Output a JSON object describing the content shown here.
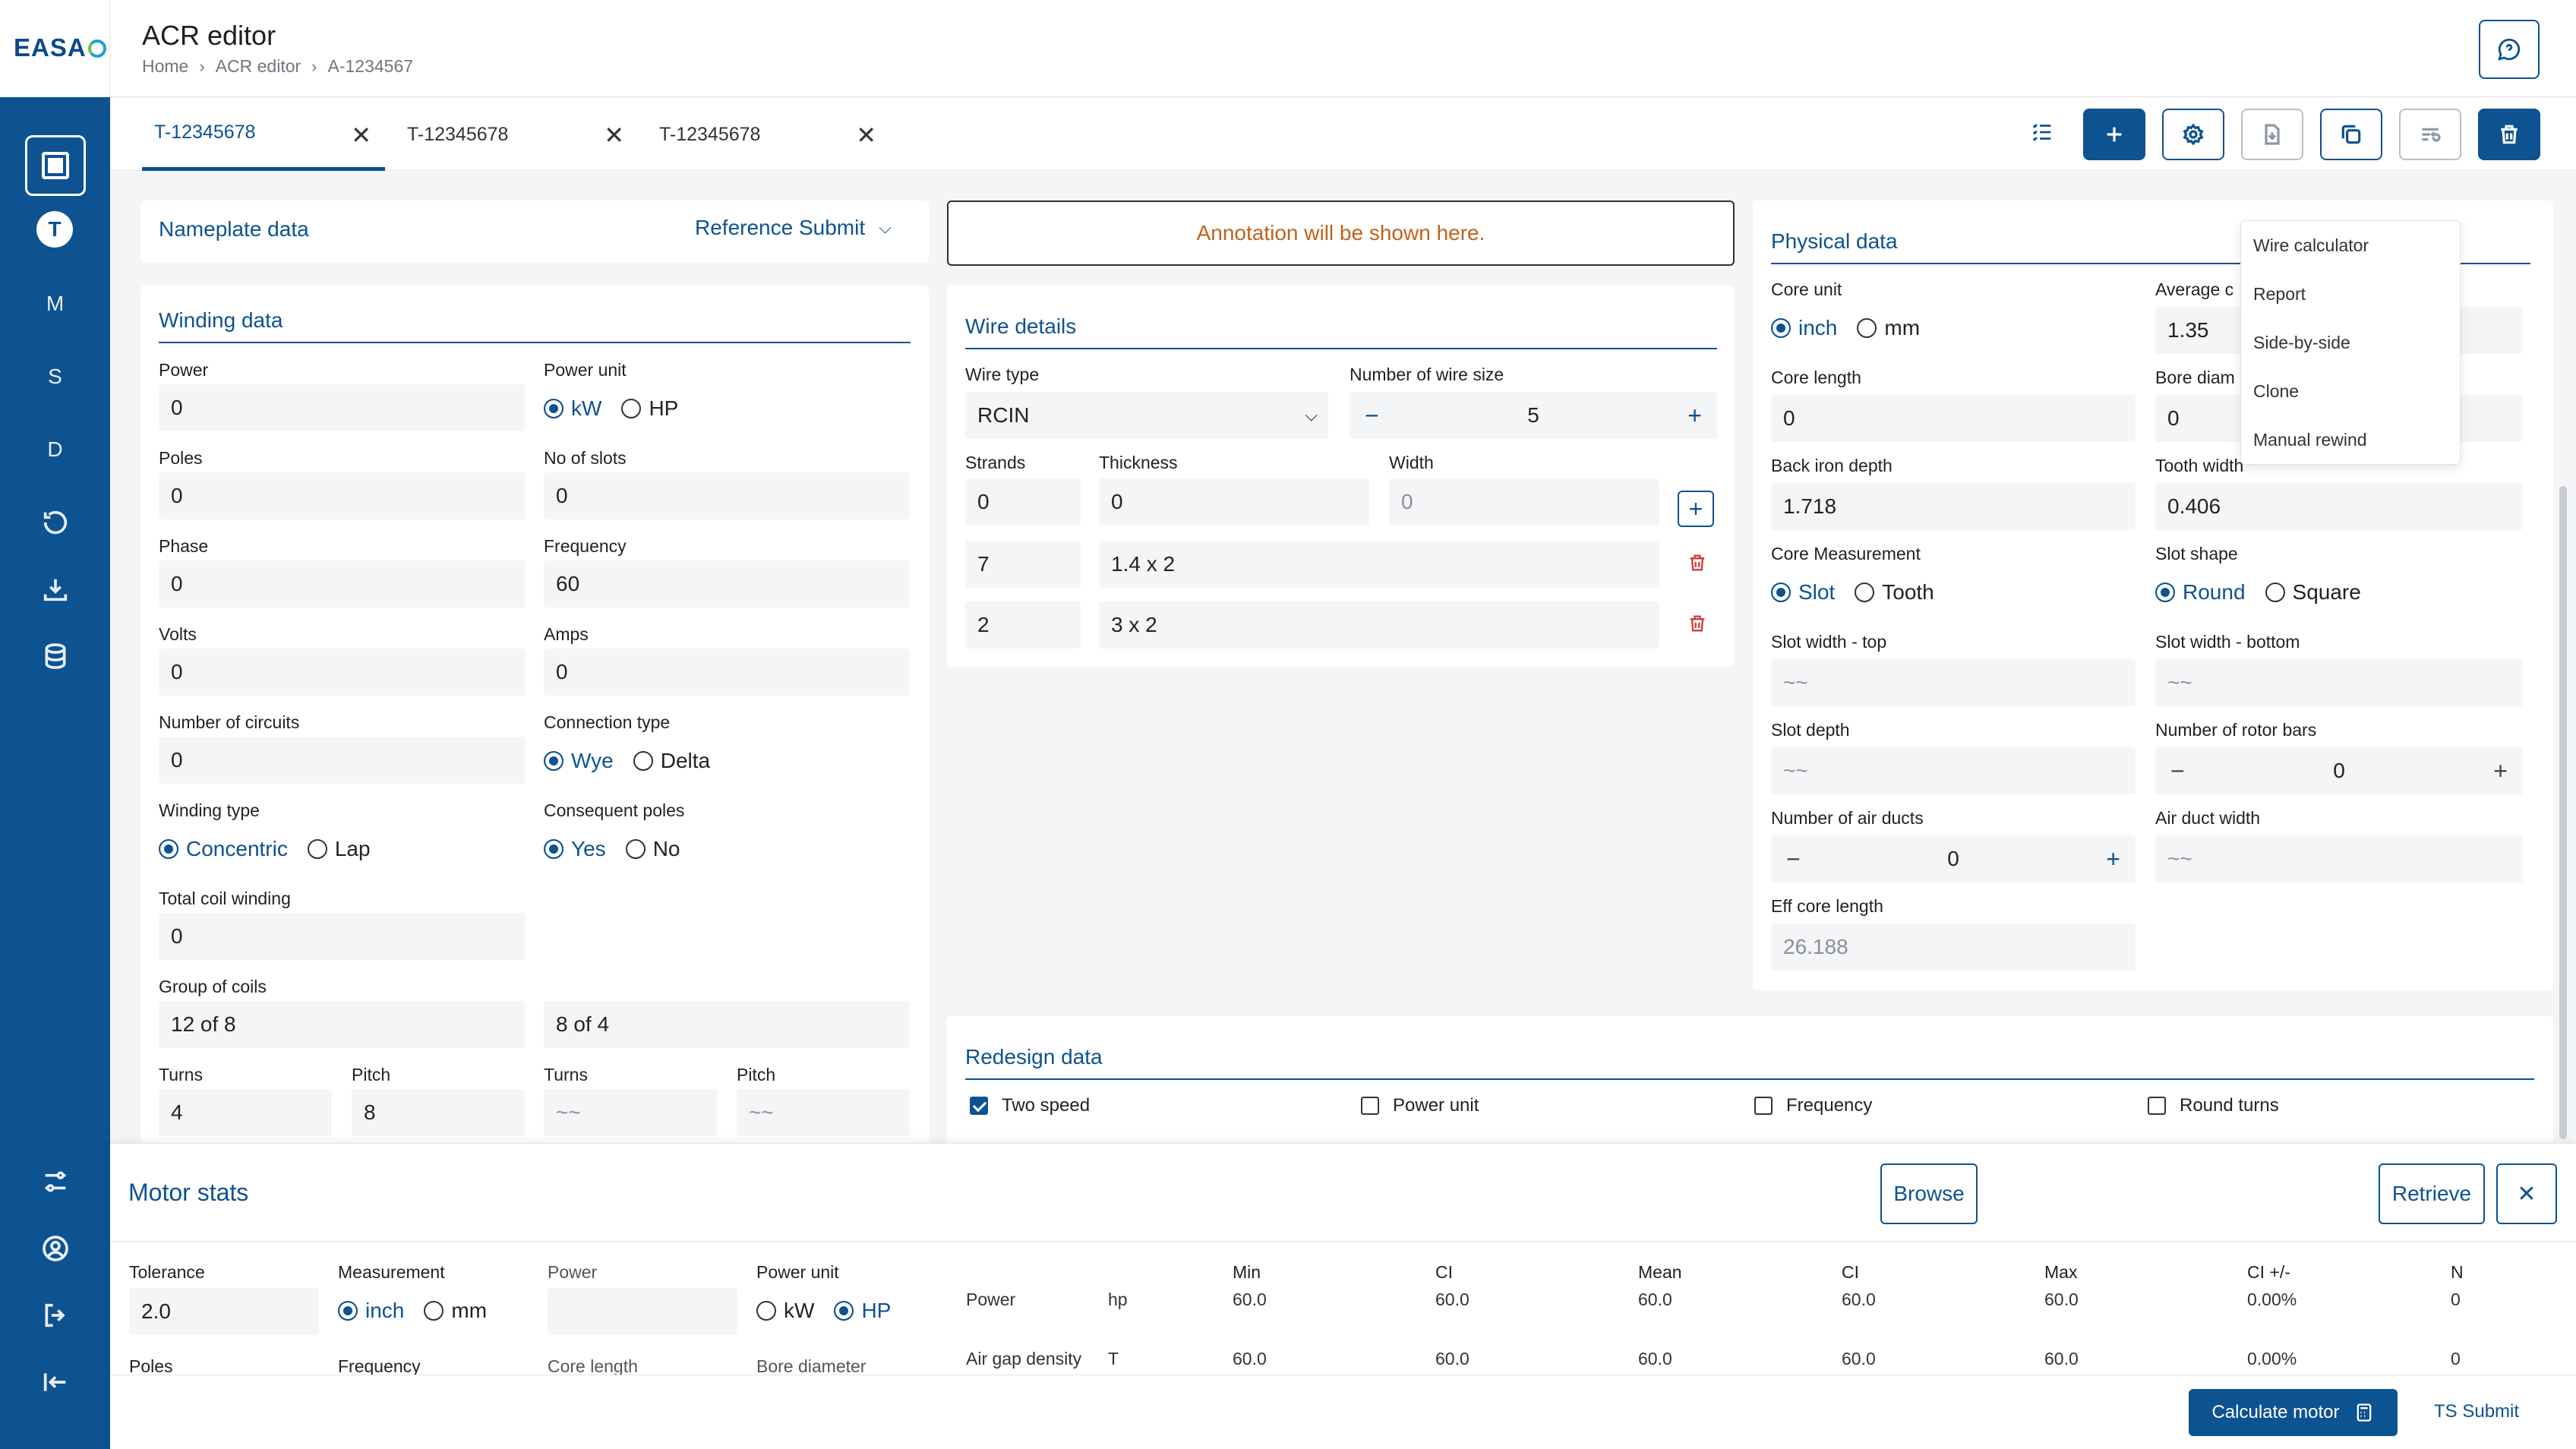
{
  "brand": {
    "logo": "EASA"
  },
  "rail": {
    "letters": [
      "T",
      "M",
      "S",
      "D"
    ]
  },
  "header": {
    "title": "ACR editor",
    "crumbs": [
      "Home",
      "ACR editor",
      "A-1234567"
    ]
  },
  "tabs": [
    {
      "label": "T-12345678"
    },
    {
      "label": "T-12345678"
    },
    {
      "label": "T-12345678"
    }
  ],
  "nameplate": {
    "title": "Nameplate data",
    "action": "Reference Submit"
  },
  "annotation": "Annotation will be shown here.",
  "winding": {
    "title": "Winding data",
    "labels": {
      "power": "Power",
      "power_unit": "Power unit",
      "poles": "Poles",
      "slots": "No of slots",
      "phase": "Phase",
      "frequency": "Frequency",
      "volts": "Volts",
      "amps": "Amps",
      "circuits": "Number of circuits",
      "connection": "Connection type",
      "wtype": "Winding type",
      "consequent": "Consequent poles",
      "coil": "Total coil winding",
      "group": "Group of coils",
      "turns1": "Turns",
      "pitch1": "Pitch",
      "turns2": "Turns",
      "pitch2": "Pitch"
    },
    "values": {
      "power": "0",
      "poles": "0",
      "slots": "0",
      "phase": "0",
      "frequency": "60",
      "volts": "0",
      "amps": "0",
      "circuits": "0",
      "coil": "0",
      "group1": "12 of 8",
      "group2": "8 of 4",
      "turns1": "4",
      "pitch1": "8",
      "turns2": "~~",
      "pitch2": "~~"
    },
    "radios": {
      "kw": "kW",
      "hp": "HP",
      "wye": "Wye",
      "delta": "Delta",
      "concentric": "Concentric",
      "lap": "Lap",
      "yes": "Yes",
      "no": "No"
    }
  },
  "wire": {
    "title": "Wire details",
    "type_label": "Wire type",
    "type_value": "RCIN",
    "size_label": "Number of wire size",
    "size_value": "5",
    "strands_label": "Strands",
    "thickness_label": "Thickness",
    "width_label": "Width",
    "row0": [
      "0",
      "0",
      "0"
    ],
    "rows": [
      {
        "strands": "7",
        "dim": "1.4 x 2"
      },
      {
        "strands": "2",
        "dim": "3 x 2"
      }
    ]
  },
  "physical": {
    "title": "Physical data",
    "labels": {
      "core_unit": "Core unit",
      "avg": "Average c",
      "core_len": "Core length",
      "bore": "Bore diam",
      "back_iron": "Back iron depth",
      "tooth_width": "Tooth width",
      "core_meas": "Core Measurement",
      "slot_shape": "Slot shape",
      "sw_top": "Slot width - top",
      "sw_bottom": "Slot width - bottom",
      "slot_depth": "Slot depth",
      "rotor_bars": "Number of rotor bars",
      "air_ducts": "Number of air ducts",
      "air_width": "Air duct width",
      "eff_core": "Eff core length"
    },
    "values": {
      "avg": "1.35",
      "core_len": "0",
      "bore": "0",
      "back_iron": "1.718",
      "tooth_width": "0.406",
      "sw_top": "~~",
      "sw_bottom": "~~",
      "slot_depth": "~~",
      "rotor_bars": "0",
      "air_ducts": "0",
      "air_width": "~~",
      "eff_core": "26.188"
    },
    "radios": {
      "inch": "inch",
      "mm": "mm",
      "slot": "Slot",
      "tooth": "Tooth",
      "round": "Round",
      "square": "Square"
    }
  },
  "menu": [
    "Wire calculator",
    "Report",
    "Side-by-side",
    "Clone",
    "Manual rewind"
  ],
  "redesign": {
    "title": "Redesign data",
    "checks": [
      "Two speed",
      "Power unit",
      "Frequency",
      "Round turns"
    ]
  },
  "motor": {
    "title": "Motor stats",
    "browse": "Browse",
    "retrieve": "Retrieve",
    "labels": {
      "tolerance": "Tolerance",
      "measurement": "Measurement",
      "power": "Power",
      "power_unit": "Power unit",
      "poles": "Poles",
      "frequency": "Frequency",
      "core_length": "Core length",
      "bore": "Bore diameter"
    },
    "tolerance": "2.0",
    "radios": {
      "inch": "inch",
      "mm": "mm",
      "kw": "kW",
      "hp": "HP"
    },
    "headers": [
      "Min",
      "CI",
      "Mean",
      "CI",
      "Max",
      "CI +/-",
      "N"
    ],
    "rows": [
      {
        "name": "Power",
        "unit": "hp",
        "vals": [
          "60.0",
          "60.0",
          "60.0",
          "60.0",
          "60.0",
          "0.00%",
          "0"
        ]
      },
      {
        "name": "Air gap density",
        "unit": "T",
        "vals": [
          "60.0",
          "60.0",
          "60.0",
          "60.0",
          "60.0",
          "0.00%",
          "0"
        ]
      }
    ]
  },
  "footer": {
    "calc": "Calculate motor",
    "ts": "TS Submit"
  }
}
